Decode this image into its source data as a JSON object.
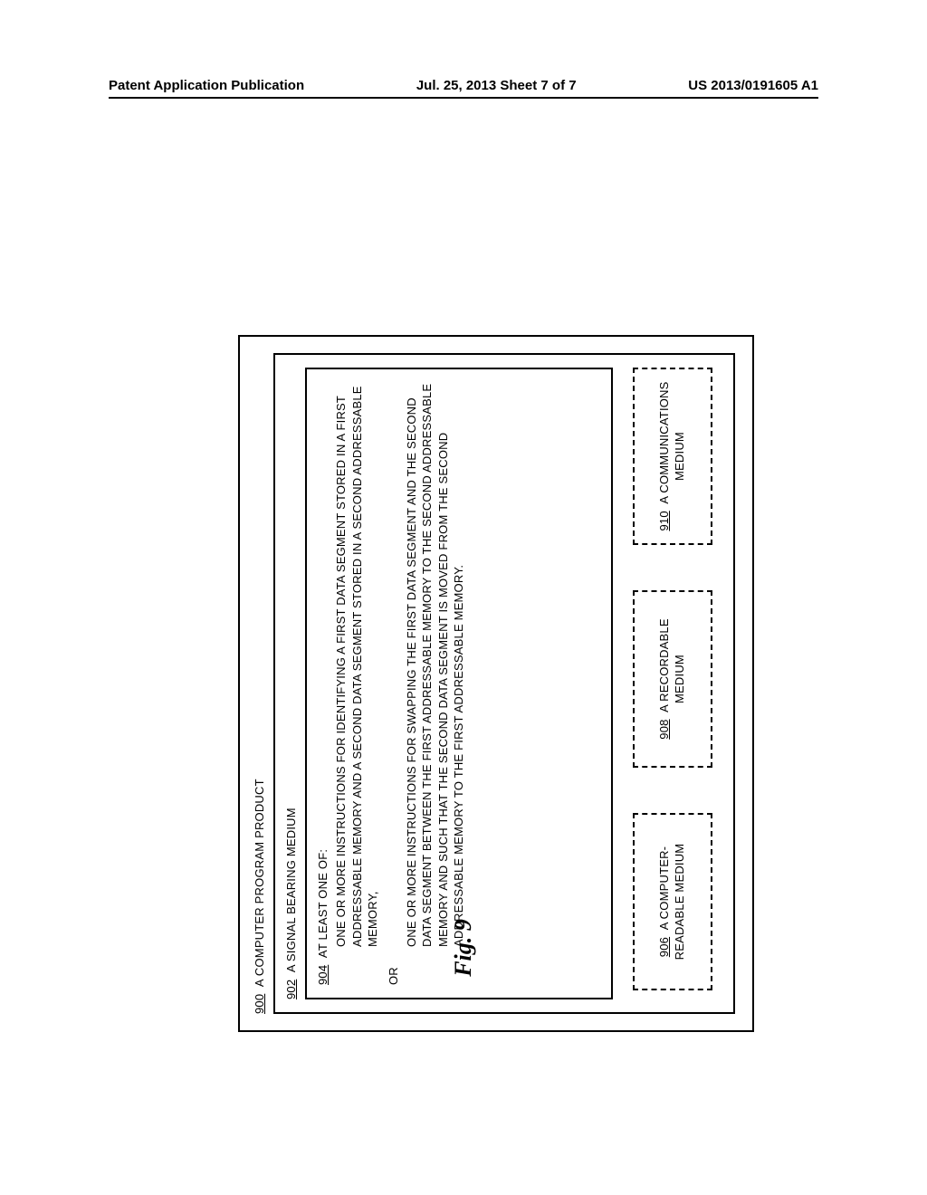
{
  "header": {
    "left": "Patent Application Publication",
    "center": "Jul. 25, 2013  Sheet 7 of 7",
    "right": "US 2013/0191605 A1"
  },
  "diagram": {
    "title_ref": "900",
    "title_text": "A COMPUTER PROGRAM PRODUCT",
    "box902_ref": "902",
    "box902_text": "A SIGNAL BEARING MEDIUM",
    "box904_ref": "904",
    "box904_text": "AT LEAST ONE OF:",
    "instr1": "ONE OR MORE INSTRUCTIONS FOR IDENTIFYING A FIRST DATA SEGMENT STORED IN A FIRST ADDRESSABLE MEMORY AND A SECOND DATA SEGMENT STORED IN A SECOND ADDRESSABLE MEMORY,",
    "or_label": "OR",
    "instr2": "ONE OR MORE INSTRUCTIONS FOR SWAPPING THE FIRST DATA SEGMENT AND THE SECOND DATA SEGMENT BETWEEN THE FIRST ADDRESSABLE MEMORY TO THE SECOND ADDRESSABLE MEMORY AND SUCH THAT THE SECOND DATA SEGMENT IS MOVED FROM THE SECOND ADDRESSABLE MEMORY TO THE FIRST ADDRESSABLE MEMORY.",
    "media": {
      "m906_ref": "906",
      "m906_text": "A COMPUTER-READABLE MEDIUM",
      "m908_ref": "908",
      "m908_text": "A RECORDABLE MEDIUM",
      "m910_ref": "910",
      "m910_text": "A COMMUNICATIONS MEDIUM"
    }
  },
  "figure_label": "Fig. 9",
  "colors": {
    "border": "#000000",
    "background": "#ffffff"
  }
}
